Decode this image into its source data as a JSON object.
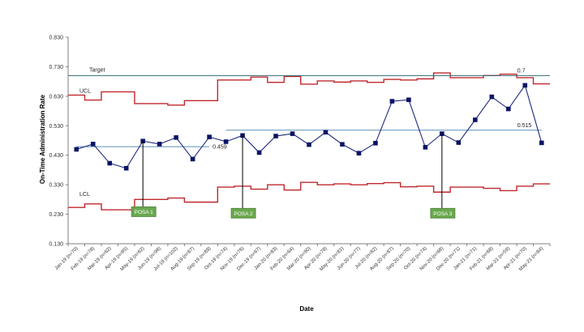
{
  "chart_data": {
    "type": "line",
    "ylabel": "On-Time Administration Rate",
    "xlabel": "Date",
    "ylim": [
      0.13,
      0.83
    ],
    "yticks": [
      "0.830",
      "0.730",
      "0.630",
      "0.530",
      "0.430",
      "0.330",
      "0.230",
      "0.130"
    ],
    "ytick_values": [
      0.83,
      0.73,
      0.63,
      0.53,
      0.43,
      0.33,
      0.23,
      0.13
    ],
    "categories": [
      "Jan-19 (n=70)",
      "Feb-19 (n=78)",
      "Mar-19 (n=62)",
      "Apr-19 (n=85)",
      "May-19 (n=62)",
      "Jun-19 (n=96)",
      "Jul-19 (n=102)",
      "Aug-19 (n=87)",
      "Sep-19 (n=89)",
      "Oct-19 (n=74)",
      "Nov-19 (n=76)",
      "Dec-19 (n=67)",
      "Jan-20 (n=83)",
      "Feb-20 (n=64)",
      "Mar-20 (n=90)",
      "Apr-20 (n=78)",
      "May-20 (n=81)",
      "Jun-20 (n=77)",
      "Jul-20 (n=82)",
      "Aug-20 (n=87)",
      "Sep-20 (n=70)",
      "Oct-20 (n=74)",
      "Nov-20 (n=68)",
      "Dec-20 (n=71)",
      "Jan-21 (n=71)",
      "Feb-21 (n=68)",
      "Mar-21 (n=59)",
      "Apr-21 (n=70)",
      "May-21 (n=84)"
    ],
    "series": [
      {
        "name": "",
        "role": "rate",
        "values": [
          0.45,
          0.468,
          0.403,
          0.386,
          0.478,
          0.468,
          0.49,
          0.417,
          0.492,
          0.476,
          0.497,
          0.439,
          0.495,
          0.503,
          0.466,
          0.508,
          0.467,
          0.437,
          0.471,
          0.613,
          0.618,
          0.457,
          0.503,
          0.473,
          0.55,
          0.628,
          0.587,
          0.667,
          0.472
        ]
      },
      {
        "name": "UCL",
        "role": "ucl",
        "values": [
          0.634,
          0.617,
          0.645,
          0.645,
          0.605,
          0.605,
          0.6,
          0.615,
          0.615,
          0.685,
          0.685,
          0.695,
          0.677,
          0.697,
          0.671,
          0.682,
          0.678,
          0.682,
          0.677,
          0.687,
          0.685,
          0.689,
          0.709,
          0.693,
          0.693,
          0.7,
          0.705,
          0.693,
          0.672
        ]
      },
      {
        "name": "LCL",
        "role": "lcl",
        "values": [
          0.253,
          0.265,
          0.245,
          0.245,
          0.28,
          0.28,
          0.285,
          0.271,
          0.271,
          0.322,
          0.325,
          0.315,
          0.33,
          0.312,
          0.338,
          0.33,
          0.333,
          0.33,
          0.334,
          0.337,
          0.323,
          0.325,
          0.305,
          0.322,
          0.322,
          0.318,
          0.31,
          0.325,
          0.333
        ]
      },
      {
        "name": "",
        "role": "mean",
        "values": [
          0.459,
          0.459,
          0.459,
          0.459,
          0.459,
          0.459,
          0.459,
          0.459,
          0.459,
          0.515,
          0.515,
          0.515,
          0.515,
          0.515,
          0.515,
          0.515,
          0.515,
          0.515,
          0.515,
          0.515,
          0.515,
          0.515,
          0.515,
          0.515,
          0.515,
          0.515,
          0.515,
          0.515,
          0.515
        ]
      },
      {
        "name": "Target",
        "role": "target",
        "value": 0.7
      }
    ],
    "annotations": [
      {
        "text": "0.459",
        "x_index": 8,
        "y": 0.459
      },
      {
        "text": "0.515",
        "x_index": 28,
        "y": 0.515
      },
      {
        "text": "0.7",
        "x_index": 28,
        "y": 0.7
      },
      {
        "text": "POSA 1",
        "x_index": 4,
        "y": 0.255
      },
      {
        "text": "POSA 2",
        "x_index": 10,
        "y": 0.25
      },
      {
        "text": "POSA 3",
        "x_index": 22,
        "y": 0.25
      }
    ],
    "series_labels": {
      "target": "Target",
      "ucl": "UCL",
      "lcl": "LCL"
    },
    "colors": {
      "rate": "#1f2a80",
      "marker": "#0b1465",
      "control_limits": "#c0282d",
      "target": "#2f6b73",
      "mean": "#5b8fb8",
      "axis": "#7f7f7f",
      "posa_fill": "#6aa84f",
      "posa_border": "#4e7f3a",
      "posa_text": "#ffffff"
    },
    "grid": false,
    "legend": "none"
  }
}
